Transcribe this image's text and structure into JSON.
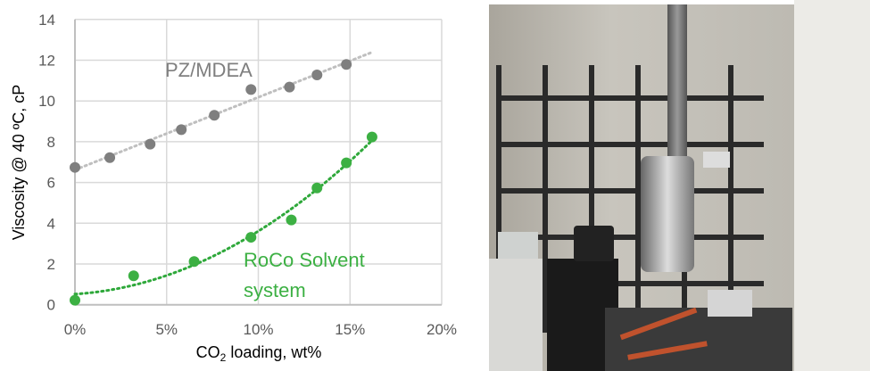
{
  "chart_data": {
    "type": "scatter",
    "xlabel": "CO2 loading, wt%",
    "xlabel_main": "CO",
    "xlabel_sub": "2",
    "xlabel_rest": " loading, wt%",
    "ylabel": "Viscosity @ 40 ºC, cP",
    "xlim": [
      0,
      20
    ],
    "ylim": [
      0,
      14
    ],
    "x_ticks": [
      0,
      5,
      10,
      15,
      20
    ],
    "x_tick_labels": [
      "0%",
      "5%",
      "10%",
      "15%",
      "20%"
    ],
    "y_ticks": [
      0,
      2,
      4,
      6,
      8,
      10,
      12,
      14
    ],
    "y_tick_labels": [
      "0",
      "2",
      "4",
      "6",
      "8",
      "10",
      "12",
      "14"
    ],
    "grid": true,
    "series": [
      {
        "name": "PZ/MDEA",
        "color": "#7f7f7f",
        "trendline_color": "#bfbfbf",
        "trendline": "linear",
        "x": [
          0,
          1.9,
          4.1,
          5.8,
          7.6,
          9.6,
          11.7,
          13.2,
          14.8
        ],
        "y": [
          6.74,
          7.22,
          7.88,
          8.59,
          9.3,
          10.56,
          10.68,
          11.28,
          11.79
        ]
      },
      {
        "name": "RoCo Solvent system",
        "label_lines": [
          "RoCo Solvent",
          "system"
        ],
        "color": "#3cb043",
        "trendline_color": "#2ea83a",
        "trendline": "polynomial",
        "x": [
          0,
          3.2,
          6.5,
          9.6,
          11.8,
          13.2,
          14.8,
          16.2
        ],
        "y": [
          0.22,
          1.42,
          2.12,
          3.31,
          4.16,
          5.73,
          6.96,
          8.23
        ]
      }
    ]
  }
}
